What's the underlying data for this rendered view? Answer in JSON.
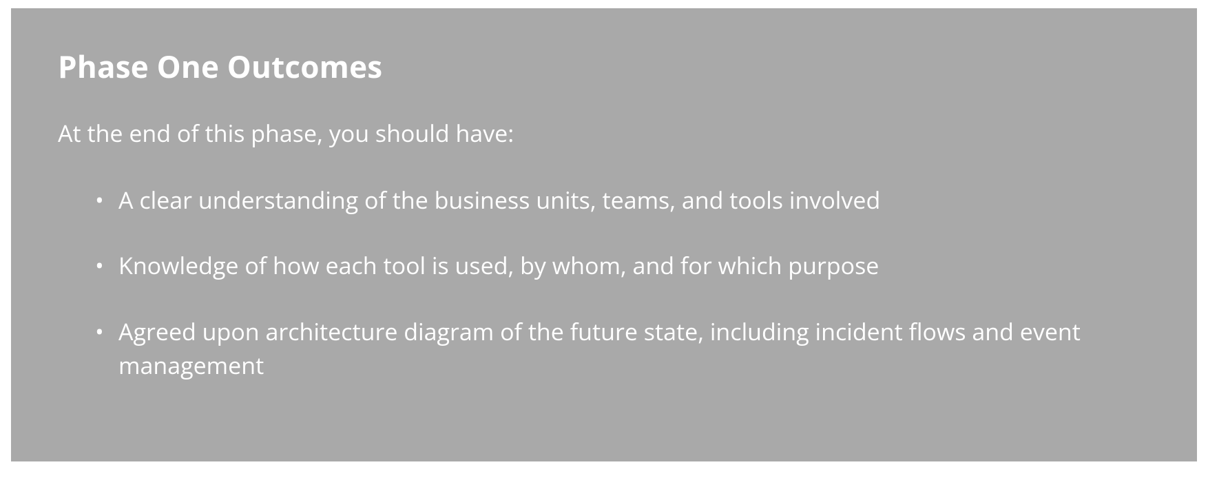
{
  "panel": {
    "background_color": "#a9a9a9",
    "text_color": "#ffffff",
    "title": "Phase One Outcomes",
    "title_fontsize": 44,
    "title_fontweight": 700,
    "intro": "At the end of this phase, you should have:",
    "intro_fontsize": 34,
    "bullet_fontsize": 34,
    "bullets": [
      "A clear understanding of the business units, teams, and tools involved",
      "Knowledge of how each tool is used, by whom, and for which purpose",
      "Agreed upon architecture diagram of the future state, including incident flows and event management"
    ]
  }
}
